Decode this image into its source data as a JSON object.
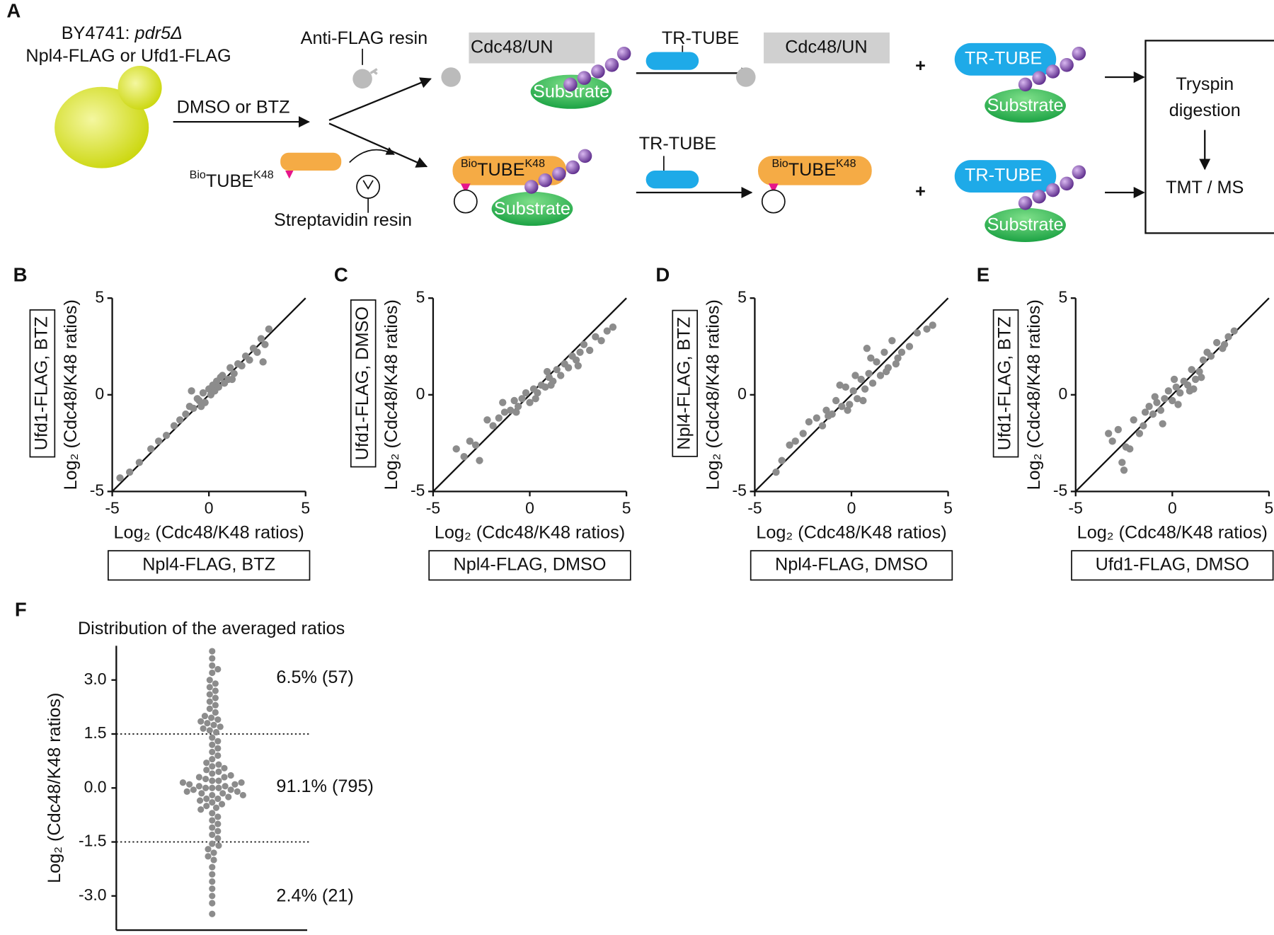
{
  "diagram": {
    "panel_label": "A",
    "strain": "BY4741:",
    "genotype": "pdr5Δ",
    "construct": "Npl4-FLAG or Ufd1-FLAG",
    "treatment": "DMSO or BTZ",
    "anti_flag": "Anti-FLAG resin",
    "streptavidin": "Streptavidin resin",
    "complex": "Cdc48/UN",
    "substrate": "Substrate",
    "tr_tube": "TR-TUBE",
    "bio": "Bio",
    "tube": "TUBE",
    "k48": "K48",
    "plus": "+",
    "digestion": [
      "Tryspin",
      "digestion"
    ],
    "ms": "TMT / MS"
  },
  "chart_data": [
    {
      "type": "scatter",
      "panel_label": "B",
      "x_label": "Log₂ (Cdc48/K48 ratios)",
      "y_label": "Log₂ (Cdc48/K48 ratios)",
      "x_condition": "Npl4-FLAG, BTZ",
      "y_condition": "Ufd1-FLAG, BTZ",
      "color": "#8c8c8c",
      "diagonal": true,
      "xlim": [
        -5,
        5
      ],
      "ylim": [
        -5,
        5
      ],
      "xticks": [
        -5,
        0,
        5
      ],
      "yticks": [
        -5,
        0,
        5
      ],
      "x": [
        -4.6,
        -4.1,
        -3.6,
        -3.0,
        -2.6,
        -2.2,
        -1.8,
        -1.5,
        -1.2,
        -1.0,
        -0.8,
        -0.6,
        -0.5,
        -0.3,
        -0.2,
        0,
        0.1,
        0.2,
        0.3,
        0.5,
        0.6,
        0.8,
        1.0,
        1.1,
        1.3,
        1.5,
        1.7,
        1.9,
        2.1,
        2.3,
        2.5,
        2.7,
        2.9,
        3.1,
        2.8,
        -0.9,
        0.4,
        -0.4,
        1.2,
        0.7
      ],
      "y": [
        -4.3,
        -4.0,
        -3.5,
        -2.8,
        -2.4,
        -2.1,
        -1.6,
        -1.3,
        -1.0,
        -0.6,
        -0.7,
        -0.2,
        -0.3,
        0.1,
        -0.4,
        0.3,
        0,
        0.5,
        0.2,
        0.4,
        0.9,
        0.6,
        0.8,
        1.4,
        1.1,
        1.6,
        1.5,
        2.0,
        1.8,
        2.4,
        2.2,
        2.9,
        2.6,
        3.4,
        1.7,
        0.2,
        0.7,
        -0.6,
        0.8,
        1.0
      ]
    },
    {
      "type": "scatter",
      "panel_label": "C",
      "x_label": "Log₂ (Cdc48/K48 ratios)",
      "y_label": "Log₂ (Cdc48/K48 ratios)",
      "x_condition": "Npl4-FLAG, DMSO",
      "y_condition": "Ufd1-FLAG, DMSO",
      "color": "#8c8c8c",
      "diagonal": true,
      "xlim": [
        -5,
        5
      ],
      "ylim": [
        -5,
        5
      ],
      "xticks": [
        -5,
        0,
        5
      ],
      "yticks": [
        -5,
        0,
        5
      ],
      "x": [
        -3.8,
        -3.4,
        -3.1,
        -2.8,
        -2.6,
        -2.2,
        -1.9,
        -1.6,
        -1.3,
        -1.0,
        -0.8,
        -0.6,
        -0.4,
        -0.2,
        0,
        0.2,
        0.4,
        0.6,
        0.8,
        1.0,
        1.2,
        1.4,
        1.6,
        1.8,
        2.0,
        2.2,
        2.4,
        2.6,
        2.8,
        3.1,
        3.4,
        3.7,
        4.0,
        4.3,
        -0.7,
        0.3,
        1.1,
        -1.4,
        0.9,
        2.5
      ],
      "y": [
        -2.8,
        -3.2,
        -2.4,
        -2.6,
        -3.4,
        -1.3,
        -1.6,
        -1.2,
        -0.9,
        -0.8,
        -0.3,
        -0.6,
        -0.2,
        0.1,
        -0.4,
        0.3,
        0.1,
        0.5,
        0.4,
        0.9,
        0.7,
        1.3,
        1.0,
        1.6,
        1.4,
        2.0,
        1.8,
        2.2,
        2.6,
        2.3,
        3.0,
        2.8,
        3.3,
        3.5,
        -0.9,
        -0.2,
        0.5,
        -0.4,
        1.2,
        1.5
      ]
    },
    {
      "type": "scatter",
      "panel_label": "D",
      "x_label": "Log₂ (Cdc48/K48 ratios)",
      "y_label": "Log₂ (Cdc48/K48 ratios)",
      "x_condition": "Npl4-FLAG, DMSO",
      "y_condition": "Npl4-FLAG, BTZ",
      "color": "#8c8c8c",
      "diagonal": true,
      "xlim": [
        -5,
        5
      ],
      "ylim": [
        -5,
        5
      ],
      "xticks": [
        -5,
        0,
        5
      ],
      "yticks": [
        -5,
        0,
        5
      ],
      "x": [
        -3.9,
        -3.6,
        -3.2,
        -2.9,
        -2.5,
        -2.2,
        -1.8,
        -1.5,
        -1.3,
        -1.0,
        -0.8,
        -0.5,
        -0.3,
        -0.1,
        0.1,
        0.3,
        0.5,
        0.7,
        0.9,
        1.1,
        1.3,
        1.5,
        1.7,
        1.9,
        2.1,
        2.3,
        2.6,
        3.0,
        3.4,
        3.9,
        4.2,
        -0.6,
        0.2,
        0.6,
        1.0,
        -1.2,
        1.8,
        2.4,
        0.8,
        -0.2
      ],
      "y": [
        -4.0,
        -3.4,
        -2.6,
        -2.4,
        -2.0,
        -1.4,
        -1.2,
        -1.6,
        -0.8,
        -1.0,
        -0.3,
        -0.6,
        0.4,
        -0.5,
        0.2,
        -0.2,
        0.8,
        0.3,
        1.1,
        0.6,
        1.7,
        1.0,
        2.2,
        1.4,
        2.8,
        1.6,
        2.2,
        2.5,
        3.2,
        3.4,
        3.6,
        0.5,
        1.0,
        -0.3,
        1.9,
        -1.1,
        1.2,
        1.9,
        2.4,
        -0.8
      ]
    },
    {
      "type": "scatter",
      "panel_label": "E",
      "x_label": "Log₂ (Cdc48/K48 ratios)",
      "y_label": "Log₂ (Cdc48/K48 ratios)",
      "x_condition": "Ufd1-FLAG, DMSO",
      "y_condition": "Ufd1-FLAG, BTZ",
      "color": "#8c8c8c",
      "diagonal": true,
      "xlim": [
        -5,
        5
      ],
      "ylim": [
        -5,
        5
      ],
      "xticks": [
        -5,
        0,
        5
      ],
      "yticks": [
        -5,
        0,
        5
      ],
      "x": [
        -3.3,
        -2.8,
        -2.5,
        -2.2,
        -2.0,
        -1.7,
        -1.5,
        -1.2,
        -1.0,
        -0.8,
        -0.6,
        -0.4,
        -0.2,
        0,
        0.2,
        0.4,
        0.6,
        0.8,
        1.0,
        1.2,
        1.4,
        1.6,
        1.8,
        2.0,
        2.3,
        2.6,
        2.9,
        3.2,
        -2.6,
        -1.4,
        -0.9,
        0.3,
        0.9,
        1.5,
        -0.5,
        0.1,
        -3.1,
        -2.4,
        1.1,
        2.7
      ],
      "y": [
        -2.0,
        -1.8,
        -3.9,
        -2.8,
        -1.3,
        -2.0,
        -1.6,
        -0.6,
        -1.0,
        -0.4,
        -0.8,
        -0.2,
        0.2,
        -0.3,
        0.4,
        0.1,
        0.7,
        0.5,
        1.3,
        0.8,
        1.2,
        1.8,
        2.2,
        2.0,
        2.7,
        2.4,
        3.0,
        3.3,
        -3.5,
        -0.9,
        -0.1,
        -0.5,
        0.2,
        0.9,
        -1.5,
        0.8,
        -2.4,
        -2.7,
        0.3,
        2.6
      ]
    },
    {
      "type": "swarm",
      "panel_label": "F",
      "title": "Distribution of the averaged ratios",
      "y_label": "Log₂ (Cdc48/K48 ratios)",
      "color": "#8c8c8c",
      "ylim": [
        -3.95,
        3.95
      ],
      "yticks": [
        {
          "value": 3,
          "label": "3.0"
        },
        {
          "value": 1.5,
          "label": "1.5"
        },
        {
          "value": 0,
          "label": "0.0"
        },
        {
          "value": -1.5,
          "label": "-1.5"
        },
        {
          "value": -3,
          "label": "-3.0"
        }
      ],
      "thresholds": [
        1.5,
        -1.5
      ],
      "annotations": [
        "6.5% (57)",
        "91.1% (795)",
        "2.4% (21)"
      ],
      "values": [
        3.8,
        3.6,
        3.4,
        3.3,
        3.2,
        3.0,
        2.9,
        2.8,
        2.7,
        2.6,
        2.5,
        2.4,
        2.3,
        2.2,
        2.1,
        2.0,
        1.95,
        1.9,
        1.85,
        1.8,
        1.75,
        1.7,
        1.65,
        1.6,
        1.55,
        1.4,
        1.3,
        1.2,
        1.1,
        1.0,
        0.9,
        0.8,
        0.7,
        0.65,
        0.6,
        0.55,
        0.5,
        0.45,
        0.4,
        0.35,
        0.3,
        0.3,
        0.25,
        0.2,
        0.2,
        0.15,
        0.15,
        0.1,
        0.1,
        0.05,
        0.05,
        0,
        0,
        0,
        -0.05,
        -0.05,
        -0.1,
        -0.1,
        -0.15,
        -0.15,
        -0.2,
        -0.2,
        -0.25,
        -0.3,
        -0.3,
        -0.35,
        -0.4,
        -0.45,
        -0.5,
        -0.55,
        -0.6,
        -0.7,
        -0.8,
        -0.9,
        -1.0,
        -1.1,
        -1.2,
        -1.3,
        -1.4,
        -1.55,
        -1.6,
        -1.7,
        -1.8,
        -1.9,
        -2.0,
        -2.2,
        -2.4,
        -2.6,
        -2.8,
        -3.0,
        -3.2,
        -3.5
      ]
    }
  ]
}
